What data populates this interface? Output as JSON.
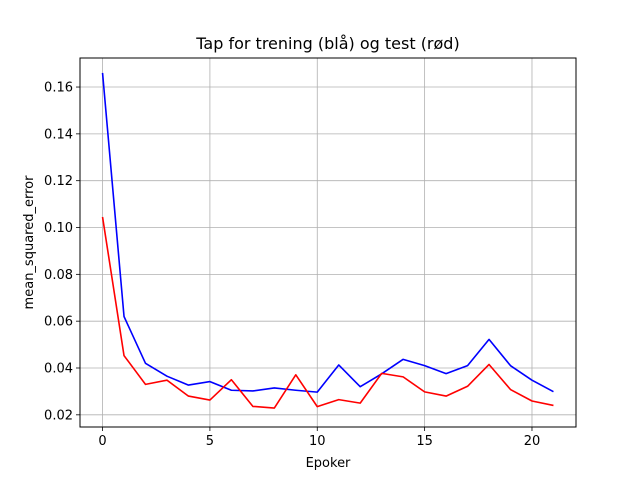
{
  "chart_data": {
    "type": "line",
    "title": "Tap for trening (blå) og test (rød)",
    "xlabel": "Epoker",
    "ylabel": "mean_squared_error",
    "xlim": [
      -1.05,
      22.05
    ],
    "ylim": [
      0.0148,
      0.1724
    ],
    "xticks": [
      0,
      5,
      10,
      15,
      20
    ],
    "yticks": [
      0.02,
      0.04,
      0.06,
      0.08,
      0.1,
      0.12,
      0.14,
      0.16
    ],
    "ytick_labels": [
      "0.02",
      "0.04",
      "0.06",
      "0.08",
      "0.10",
      "0.12",
      "0.14",
      "0.16"
    ],
    "grid": true,
    "x": [
      0,
      1,
      2,
      3,
      4,
      5,
      6,
      7,
      8,
      9,
      10,
      11,
      12,
      13,
      14,
      15,
      16,
      17,
      18,
      19,
      20,
      21
    ],
    "series": [
      {
        "color": "#0000ff",
        "values": [
          0.166,
          0.062,
          0.042,
          0.0365,
          0.0327,
          0.0342,
          0.0305,
          0.0302,
          0.0315,
          0.0305,
          0.0297,
          0.0413,
          0.032,
          0.0375,
          0.0437,
          0.041,
          0.0376,
          0.041,
          0.0522,
          0.041,
          0.0348,
          0.0299
        ]
      },
      {
        "color": "#ff0000",
        "values": [
          0.1045,
          0.0453,
          0.033,
          0.0348,
          0.028,
          0.0263,
          0.035,
          0.0236,
          0.0229,
          0.0371,
          0.0235,
          0.0265,
          0.025,
          0.0377,
          0.0362,
          0.0298,
          0.028,
          0.0322,
          0.0415,
          0.0308,
          0.0259,
          0.024
        ]
      }
    ]
  }
}
